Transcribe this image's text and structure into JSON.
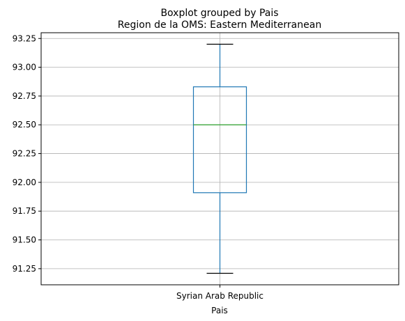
{
  "chart_data": {
    "type": "boxplot",
    "suptitle": "Boxplot grouped by Pais",
    "title": "Region de la OMS: Eastern Mediterranean",
    "xlabel": "Pais",
    "ylabel": "",
    "categories": [
      "Syrian Arab Republic"
    ],
    "boxes": [
      {
        "category": "Syrian Arab Republic",
        "whisker_low": 91.21,
        "q1": 91.91,
        "median": 92.5,
        "q3": 92.83,
        "whisker_high": 93.2
      }
    ],
    "ylim": [
      91.11,
      93.3
    ],
    "yticks": [
      "91.25",
      "91.50",
      "91.75",
      "92.00",
      "92.25",
      "92.50",
      "92.75",
      "93.00",
      "93.25"
    ],
    "grid": true,
    "colors": {
      "box": "#1f77b4",
      "median": "#2ca02c",
      "whisker": "#1f77b4",
      "cap": "#000000",
      "grid": "#b0b0b0"
    }
  }
}
